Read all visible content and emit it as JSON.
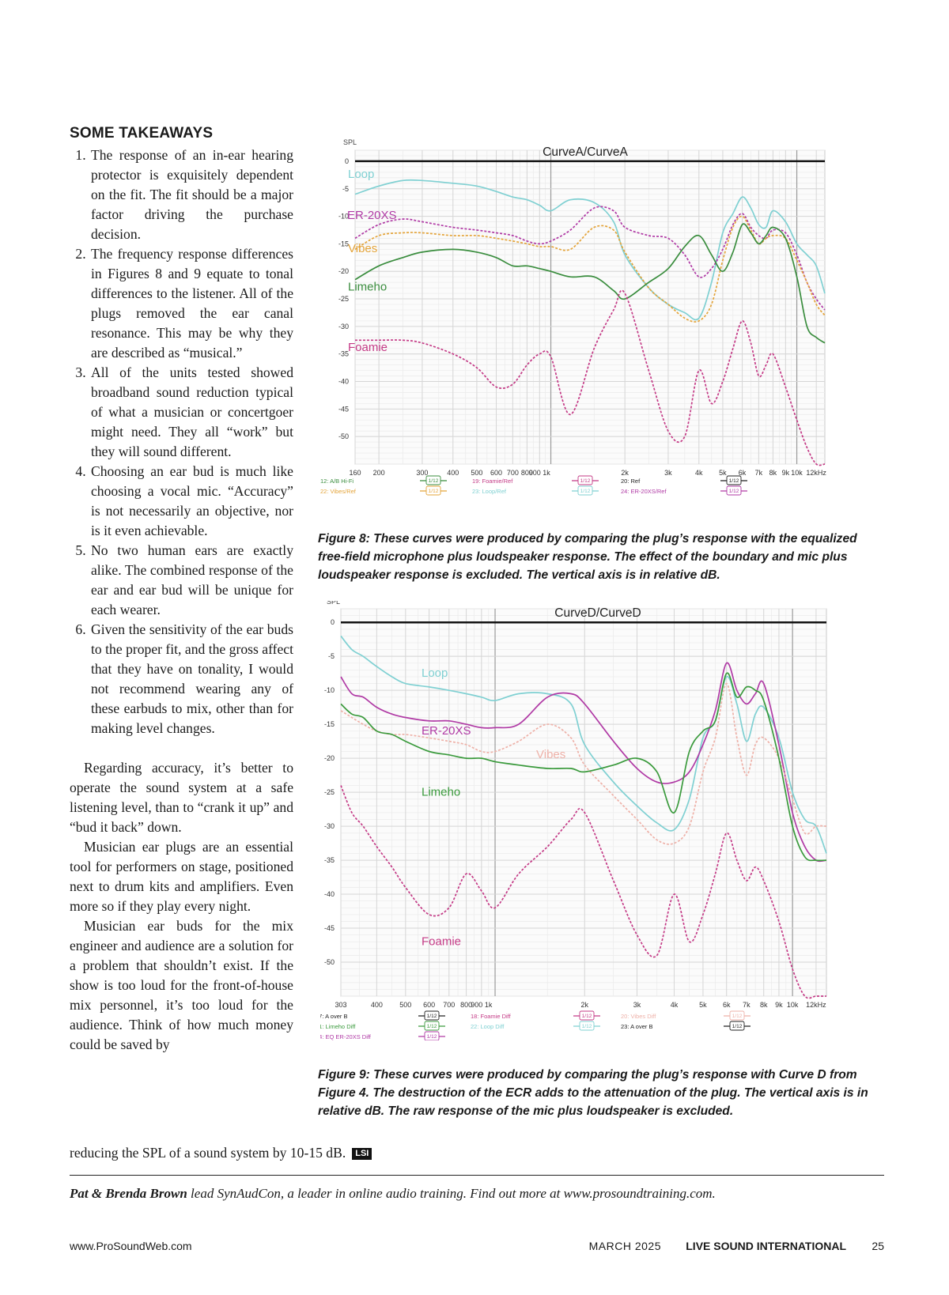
{
  "article": {
    "section_heading": "SOME TAKEAWAYS",
    "takeaways": [
      "The response of an in-ear hearing protector is exquisitely dependent on the fit. The fit should be a major factor driving the purchase decision.",
      "The frequency response differences in Figures 8 and 9 equate to tonal differences to the listener. All of the plugs removed the ear canal resonance. This may be why they are described as “musical.”",
      "All of the units tested showed broadband sound reduction typical of what a musician or concertgoer might need. They all “work” but they will sound different.",
      "Choosing an ear bud is much like choosing a vocal mic. “Accuracy” is not necessarily an objective, nor is it even achievable.",
      "No two human ears are exactly alike. The combined response of the ear and ear bud will be unique for each wearer.",
      "Given the sensitivity of the ear buds to the proper fit, and the gross affect that they have on tonality, I would not recommend wearing any of these earbuds to mix, other than for making level changes."
    ],
    "paragraphs": [
      "Regarding accuracy, it’s better to operate the sound system at a safe listening level, than to “crank it up” and “bud it back” down.",
      "Musician ear plugs are an essential tool for performers on stage, positioned next to drum kits and amplifiers. Even more so if they play every night.",
      "Musician ear buds for the mix engineer and audience are a solution for a problem that shouldn’t exist. If the show is too loud for the front-of-house mix personnel, it’s too loud for the audience. Think of how much money could be saved by"
    ],
    "final_line": "reducing the SPL of a sound system by 10-15 dB.",
    "end_badge": "LSI"
  },
  "figure8": {
    "caption": "Figure 8: These curves were produced by comparing the plug’s response with the equalized free-field microphone plus loudspeaker response. The effect of the boundary and mic plus loudspeaker response is excluded. The vertical axis is in relative dB.",
    "chart_data": {
      "type": "line",
      "title": "CurveA/CurveA",
      "ylabel": "SPL",
      "x_scale": "log",
      "xlim": [
        160,
        13000
      ],
      "ylim": [
        -55,
        2
      ],
      "grid": true,
      "x_ticks": [
        160,
        200,
        300,
        400,
        500,
        600,
        700,
        800,
        900,
        1000,
        2000,
        3000,
        4000,
        5000,
        6000,
        7000,
        8000,
        9000,
        10000,
        12000
      ],
      "x_tick_labels": [
        "160",
        "200",
        "300",
        "400",
        "500",
        "600",
        "700",
        "800",
        "900 1k",
        "",
        "2k",
        "3k",
        "4k",
        "5k",
        "6k",
        "7k",
        "8k",
        "9k",
        "10k",
        "12kHz"
      ],
      "y_ticks": [
        0,
        -5,
        -10,
        -15,
        -20,
        -25,
        -30,
        -35,
        -40,
        -45,
        -50
      ],
      "y_tick_labels": [
        "0",
        "-5",
        "-10",
        "-15",
        "-20",
        "-25",
        "-30",
        "-35",
        "-40",
        "-45",
        "-50"
      ],
      "x": [
        160,
        200,
        250,
        300,
        400,
        500,
        600,
        700,
        800,
        900,
        1000,
        1200,
        1500,
        1800,
        2000,
        2500,
        3000,
        3500,
        4000,
        4500,
        5000,
        5500,
        6000,
        6500,
        7000,
        7500,
        8000,
        9000,
        10000,
        11000,
        12000,
        13000
      ],
      "series": [
        {
          "name": "Loop",
          "color": "#7fd0d2",
          "dashed": false,
          "values": [
            -6,
            -4.5,
            -3.5,
            -3.5,
            -4,
            -4.5,
            -5.5,
            -6.5,
            -7,
            -8,
            -9,
            -7,
            -7.5,
            -11,
            -17,
            -23,
            -26,
            -27.5,
            -28.5,
            -22,
            -13,
            -9.5,
            -6.5,
            -8.5,
            -11.5,
            -12,
            -9,
            -11,
            -15,
            -17,
            -19,
            -24
          ]
        },
        {
          "name": "ER-20XS",
          "color": "#b03aa5",
          "dashed": true,
          "values": [
            -14,
            -11.5,
            -10.5,
            -11,
            -12,
            -12.5,
            -13,
            -13.5,
            -14.5,
            -15,
            -14.5,
            -12.5,
            -8.5,
            -9,
            -12,
            -13.5,
            -14,
            -17,
            -21,
            -19.5,
            -16,
            -11.5,
            -9.5,
            -12,
            -13.5,
            -14,
            -12.5,
            -13,
            -17,
            -22,
            -25,
            -27
          ]
        },
        {
          "name": "Vibes",
          "color": "#e4a43a",
          "dashed": true,
          "values": [
            -16,
            -13.5,
            -13,
            -13,
            -13.5,
            -13.5,
            -14,
            -14.5,
            -15,
            -15.5,
            -15.5,
            -16,
            -12,
            -12.5,
            -16.5,
            -23,
            -26,
            -28.5,
            -29,
            -26,
            -18,
            -12,
            -10,
            -12.5,
            -15,
            -14,
            -13.5,
            -14,
            -18,
            -22,
            -26,
            -28
          ]
        },
        {
          "name": "Limeho",
          "color": "#3a8d3e",
          "dashed": false,
          "values": [
            -21.5,
            -19,
            -17.5,
            -16.5,
            -16,
            -16.5,
            -17.5,
            -19,
            -19,
            -19.5,
            -20,
            -21,
            -21,
            -23.5,
            -25,
            -22,
            -19.5,
            -15.5,
            -13.5,
            -17,
            -20,
            -16.5,
            -11.5,
            -13,
            -15,
            -13.5,
            -12,
            -14,
            -21,
            -30,
            -32,
            -33
          ]
        },
        {
          "name": "Foamie",
          "color": "#c43a86",
          "dashed": true,
          "values": [
            -32.5,
            -32.5,
            -32.5,
            -33,
            -35,
            -37.5,
            -41,
            -40.5,
            -37,
            -35,
            -35.5,
            -46,
            -34,
            -27,
            -24,
            -38,
            -49,
            -50,
            -38,
            -44,
            -40,
            -34,
            -29,
            -33,
            -39,
            -37,
            -35,
            -41,
            -47,
            -52,
            -55,
            -55
          ]
        }
      ],
      "legend": {
        "placement": "bottom",
        "rows": [
          [
            "12: A/B Hi-Fi",
            "19: Foamie/Ref",
            "20: Ref"
          ],
          [
            "22: Vibes/Ref",
            "23: Loop/Ref",
            "24: ER-20XS/Ref"
          ]
        ],
        "smoothing_label": "1/12"
      },
      "series_labels": [
        "Loop",
        "ER-20XS",
        "Vibes",
        "Limeho",
        "Foamie"
      ]
    }
  },
  "figure9": {
    "caption": "Figure 9: These curves were produced by comparing the plug’s response with Curve D from Figure 4. The destruction of the ECR adds to the attenuation of the plug. The vertical axis is in relative dB. The raw response of the mic plus loudspeaker is excluded.",
    "chart_data": {
      "type": "line",
      "title": "CurveD/CurveD",
      "ylabel": "SPL",
      "x_scale": "log",
      "xlim": [
        303,
        13000
      ],
      "ylim": [
        -55,
        2
      ],
      "grid": true,
      "x_ticks": [
        303,
        400,
        500,
        600,
        700,
        800,
        900,
        1000,
        2000,
        3000,
        4000,
        5000,
        6000,
        7000,
        8000,
        9000,
        10000,
        12000
      ],
      "x_tick_labels": [
        "303",
        "400",
        "500",
        "600",
        "700",
        "800",
        "900 1k",
        "",
        "2k",
        "3k",
        "4k",
        "5k",
        "6k",
        "7k",
        "8k",
        "9k",
        "10k",
        "12kHz"
      ],
      "y_ticks": [
        0,
        -5,
        -10,
        -15,
        -20,
        -25,
        -30,
        -35,
        -40,
        -45,
        -50
      ],
      "y_tick_labels": [
        "0",
        "-5",
        "-10",
        "-15",
        "-20",
        "-25",
        "-30",
        "-35",
        "-40",
        "-45",
        "-50"
      ],
      "x": [
        303,
        330,
        360,
        400,
        450,
        500,
        600,
        700,
        800,
        900,
        1000,
        1200,
        1500,
        1800,
        2000,
        2500,
        3000,
        3500,
        4000,
        4500,
        5000,
        5500,
        6000,
        6500,
        7000,
        7500,
        8000,
        9000,
        10000,
        11000,
        12000,
        13000
      ],
      "series": [
        {
          "name": "Loop",
          "color": "#7fd0d2",
          "dashed": false,
          "values": [
            -2,
            -4,
            -5,
            -6.5,
            -8,
            -9,
            -9.5,
            -10,
            -10.5,
            -11,
            -11.5,
            -10.5,
            -10.5,
            -12,
            -18,
            -23.5,
            -27,
            -29.5,
            -30.5,
            -26,
            -17,
            -14.5,
            -8,
            -12,
            -17.5,
            -13.5,
            -12.5,
            -17,
            -25,
            -29,
            -30,
            -34
          ]
        },
        {
          "name": "ER-20XS",
          "color": "#b03aa5",
          "dashed": false,
          "values": [
            -8,
            -10.5,
            -11,
            -12.5,
            -13.5,
            -14,
            -14.5,
            -14.5,
            -15,
            -15.5,
            -15.5,
            -15,
            -11,
            -10.5,
            -12,
            -17.5,
            -21.5,
            -23.5,
            -23.5,
            -22,
            -18,
            -13,
            -6,
            -10,
            -12,
            -10.5,
            -9,
            -18,
            -28,
            -33,
            -35,
            -35
          ]
        },
        {
          "name": "Vibes",
          "color": "#eeb1a8",
          "dashed": true,
          "values": [
            -13,
            -14,
            -15,
            -16,
            -16.5,
            -16.5,
            -17,
            -17.5,
            -18,
            -19,
            -19,
            -17.5,
            -15,
            -17,
            -21,
            -25.5,
            -29,
            -32,
            -32.5,
            -30,
            -22,
            -17,
            -9,
            -17,
            -22.5,
            -18,
            -17,
            -20,
            -26,
            -31,
            -30,
            -30
          ]
        },
        {
          "name": "Limeho",
          "color": "#3a9a3c",
          "dashed": false,
          "values": [
            -12,
            -13.5,
            -14,
            -16,
            -16.5,
            -17.5,
            -19,
            -19.5,
            -20,
            -20,
            -20.5,
            -21,
            -21.5,
            -21.5,
            -22,
            -21,
            -20,
            -22,
            -28,
            -19,
            -16,
            -14.5,
            -7.5,
            -11,
            -9.5,
            -10,
            -11.5,
            -20,
            -30,
            -34.5,
            -35,
            -35
          ]
        },
        {
          "name": "Foamie",
          "color": "#c43a86",
          "dashed": true,
          "values": [
            -24,
            -28,
            -30,
            -33,
            -36,
            -39,
            -43,
            -42,
            -37,
            -39.5,
            -42,
            -37,
            -33,
            -29,
            -28,
            -38,
            -46,
            -49,
            -40,
            -47,
            -43,
            -37,
            -31,
            -35,
            -38,
            -36,
            -38,
            -44,
            -51,
            -55,
            -55,
            -55
          ]
        }
      ],
      "legend": {
        "placement": "bottom",
        "rows": [
          [
            "17: A over B",
            "18: Foamie Diff",
            "20: Vibes Diff"
          ],
          [
            "21: Limeho Diff",
            "22: Loop Diff",
            "23: A over B"
          ],
          [
            "24: EQ ER-20XS Diff",
            "",
            ""
          ]
        ],
        "smoothing_label": "1/12"
      },
      "series_labels": [
        "Loop",
        "ER-20XS",
        "Vibes",
        "Limeho",
        "Foamie"
      ]
    }
  },
  "bio": {
    "names": "Pat & Brenda Brown",
    "text": " lead SynAudCon, a leader in online audio training. Find out more at www.prosoundtraining.com."
  },
  "footer": {
    "url": "www.ProSoundWeb.com",
    "month": "MARCH  2025",
    "publication": "LIVE SOUND INTERNATIONAL",
    "page_number": "25"
  }
}
